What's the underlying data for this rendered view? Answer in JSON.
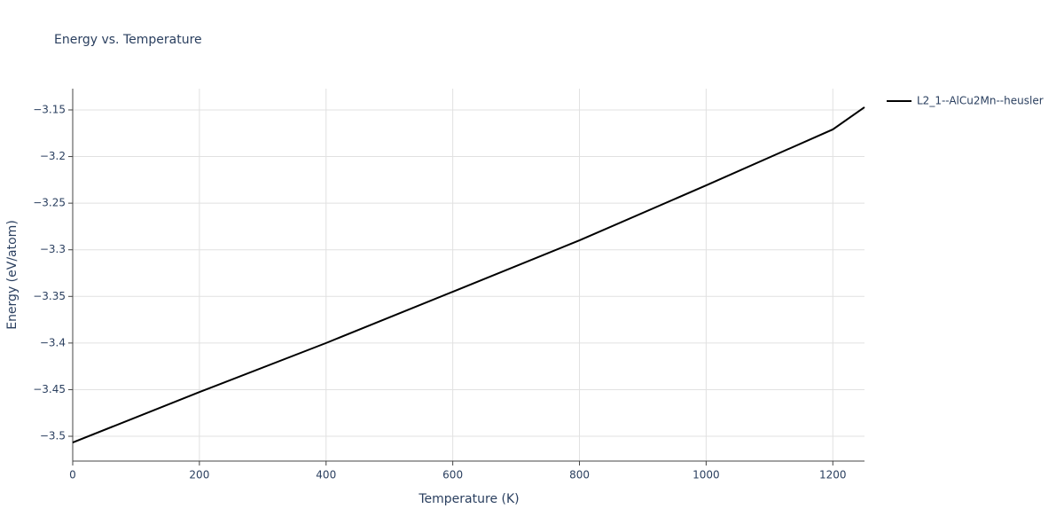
{
  "chart_data": {
    "type": "line",
    "title": "Energy vs. Temperature",
    "x_label": "Temperature (K)",
    "y_label": "Energy (eV/atom)",
    "x": [
      0,
      200,
      400,
      600,
      800,
      1000,
      1200,
      1250
    ],
    "series": [
      {
        "name": "L2_1--AlCu2Mn--heusler",
        "color": "#000000",
        "values": [
          -3.5067,
          -3.4526,
          -3.4,
          -3.345,
          -3.2899,
          -3.2309,
          -3.1709,
          -3.1471
        ]
      }
    ],
    "xlim": [
      0,
      1250
    ],
    "xticks": [
      0,
      200,
      400,
      600,
      800,
      1000,
      1200
    ],
    "ylim": [
      -3.5266,
      -3.1272
    ],
    "yticks": [
      {
        "value": -3.5,
        "label": "−3.5"
      },
      {
        "value": -3.45,
        "label": "−3.45"
      },
      {
        "value": -3.4,
        "label": "−3.4"
      },
      {
        "value": -3.35,
        "label": "−3.35"
      },
      {
        "value": -3.3,
        "label": "−3.3"
      },
      {
        "value": -3.25,
        "label": "−3.25"
      },
      {
        "value": -3.2,
        "label": "−3.2"
      },
      {
        "value": -3.15,
        "label": "−3.15"
      }
    ],
    "grid": true,
    "legend": "right"
  }
}
